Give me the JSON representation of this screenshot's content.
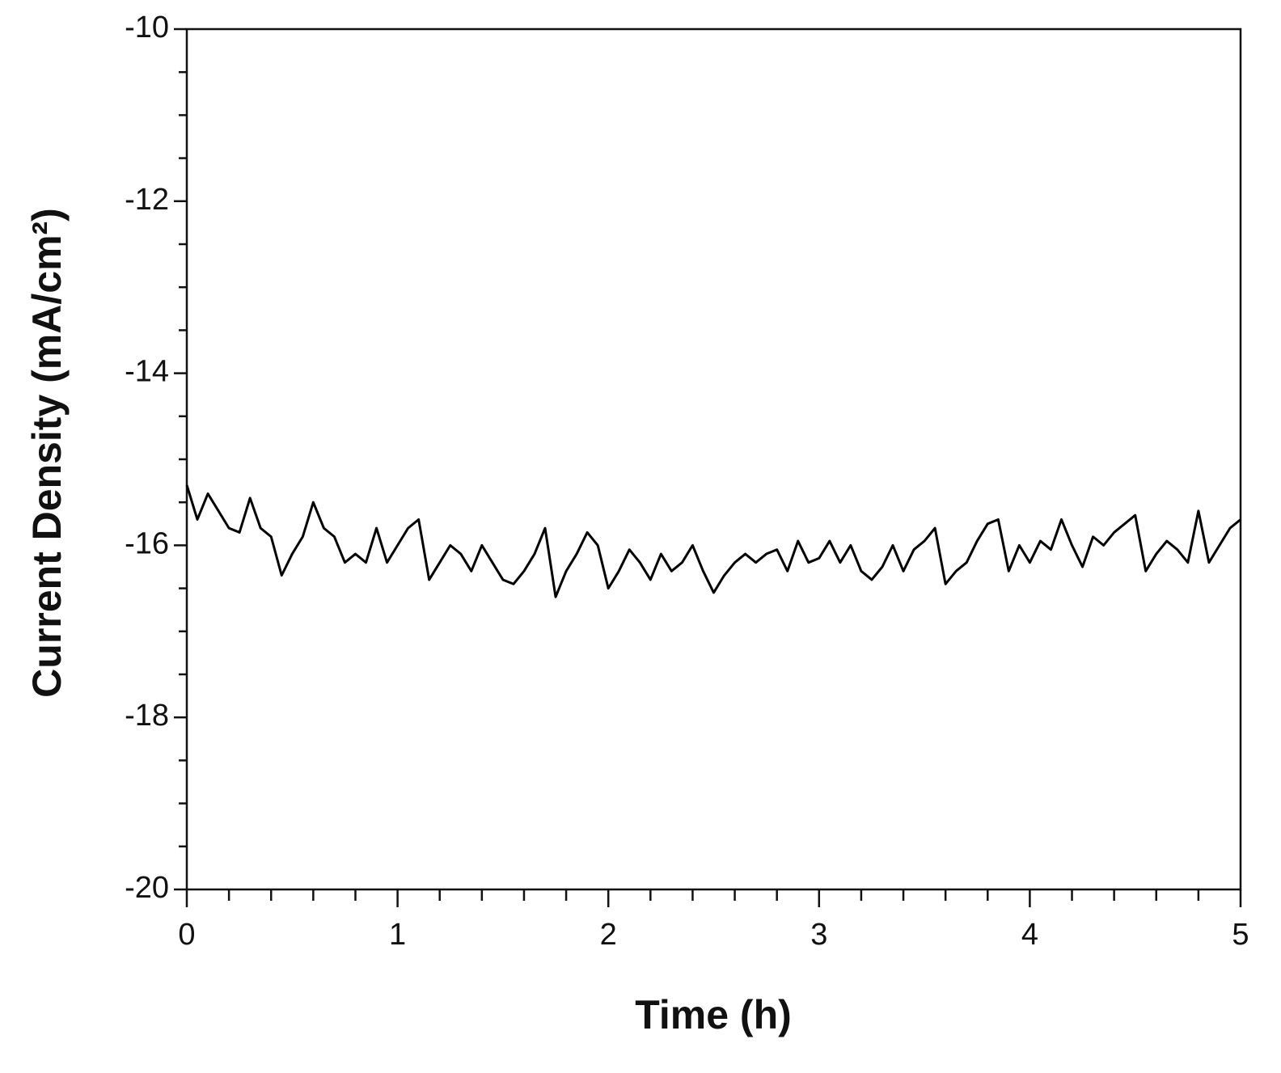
{
  "chart_data": {
    "type": "line",
    "xlabel": "Time (h)",
    "ylabel": "Current Density (mA/cm²)",
    "xlim": [
      0,
      5
    ],
    "xticks": [
      0,
      1,
      2,
      3,
      4,
      5
    ],
    "minor_xticks": [
      0.2,
      0.4,
      0.6,
      0.8,
      1.2,
      1.4,
      1.6,
      1.8,
      2.2,
      2.4,
      2.6,
      2.8,
      3.2,
      3.4,
      3.6,
      3.8,
      4.2,
      4.4,
      4.6,
      4.8
    ],
    "ylim": [
      -20,
      -10
    ],
    "yticks": [
      -20,
      -18,
      -16,
      -14,
      -12,
      -10
    ],
    "minor_yticks": [
      -19.5,
      -19,
      -18.5,
      -17.5,
      -17,
      -16.5,
      -15.5,
      -15,
      -14.5,
      -13.5,
      -13,
      -12.5,
      -11.5,
      -11,
      -10.5
    ],
    "color": "#000000",
    "x": [
      0,
      0.05,
      0.1,
      0.15,
      0.2,
      0.25,
      0.3,
      0.35,
      0.4,
      0.45,
      0.5,
      0.55,
      0.6,
      0.65,
      0.7,
      0.75,
      0.8,
      0.85,
      0.9,
      0.95,
      1.0,
      1.05,
      1.1,
      1.15,
      1.2,
      1.25,
      1.3,
      1.35,
      1.4,
      1.45,
      1.5,
      1.55,
      1.6,
      1.65,
      1.7,
      1.75,
      1.8,
      1.85,
      1.9,
      1.95,
      2.0,
      2.05,
      2.1,
      2.15,
      2.2,
      2.25,
      2.3,
      2.35,
      2.4,
      2.45,
      2.5,
      2.55,
      2.6,
      2.65,
      2.7,
      2.75,
      2.8,
      2.85,
      2.9,
      2.95,
      3.0,
      3.05,
      3.1,
      3.15,
      3.2,
      3.25,
      3.3,
      3.35,
      3.4,
      3.45,
      3.5,
      3.55,
      3.6,
      3.65,
      3.7,
      3.75,
      3.8,
      3.85,
      3.9,
      3.95,
      4.0,
      4.05,
      4.1,
      4.15,
      4.2,
      4.25,
      4.3,
      4.35,
      4.4,
      4.45,
      4.5,
      4.55,
      4.6,
      4.65,
      4.7,
      4.75,
      4.8,
      4.85,
      4.9,
      4.95,
      5.0
    ],
    "values": [
      -15.3,
      -15.7,
      -15.4,
      -15.6,
      -15.8,
      -15.85,
      -15.45,
      -15.8,
      -15.9,
      -16.35,
      -16.1,
      -15.9,
      -15.5,
      -15.8,
      -15.9,
      -16.2,
      -16.1,
      -16.2,
      -15.8,
      -16.2,
      -16.0,
      -15.8,
      -15.7,
      -16.4,
      -16.2,
      -16.0,
      -16.1,
      -16.3,
      -16.0,
      -16.2,
      -16.4,
      -16.45,
      -16.3,
      -16.1,
      -15.8,
      -16.6,
      -16.3,
      -16.1,
      -15.85,
      -16.0,
      -16.5,
      -16.3,
      -16.05,
      -16.2,
      -16.4,
      -16.1,
      -16.3,
      -16.2,
      -16.0,
      -16.3,
      -16.55,
      -16.35,
      -16.2,
      -16.1,
      -16.2,
      -16.1,
      -16.05,
      -16.3,
      -15.95,
      -16.2,
      -16.15,
      -15.95,
      -16.2,
      -16.0,
      -16.3,
      -16.4,
      -16.25,
      -16.0,
      -16.3,
      -16.05,
      -15.95,
      -15.8,
      -16.45,
      -16.3,
      -16.2,
      -15.95,
      -15.75,
      -15.7,
      -16.3,
      -16.0,
      -16.2,
      -15.95,
      -16.05,
      -15.7,
      -16.0,
      -16.25,
      -15.9,
      -16.0,
      -15.85,
      -15.75,
      -15.65,
      -16.3,
      -16.1,
      -15.95,
      -16.05,
      -16.2,
      -15.6,
      -16.2,
      -16.0,
      -15.8,
      -15.7
    ]
  }
}
